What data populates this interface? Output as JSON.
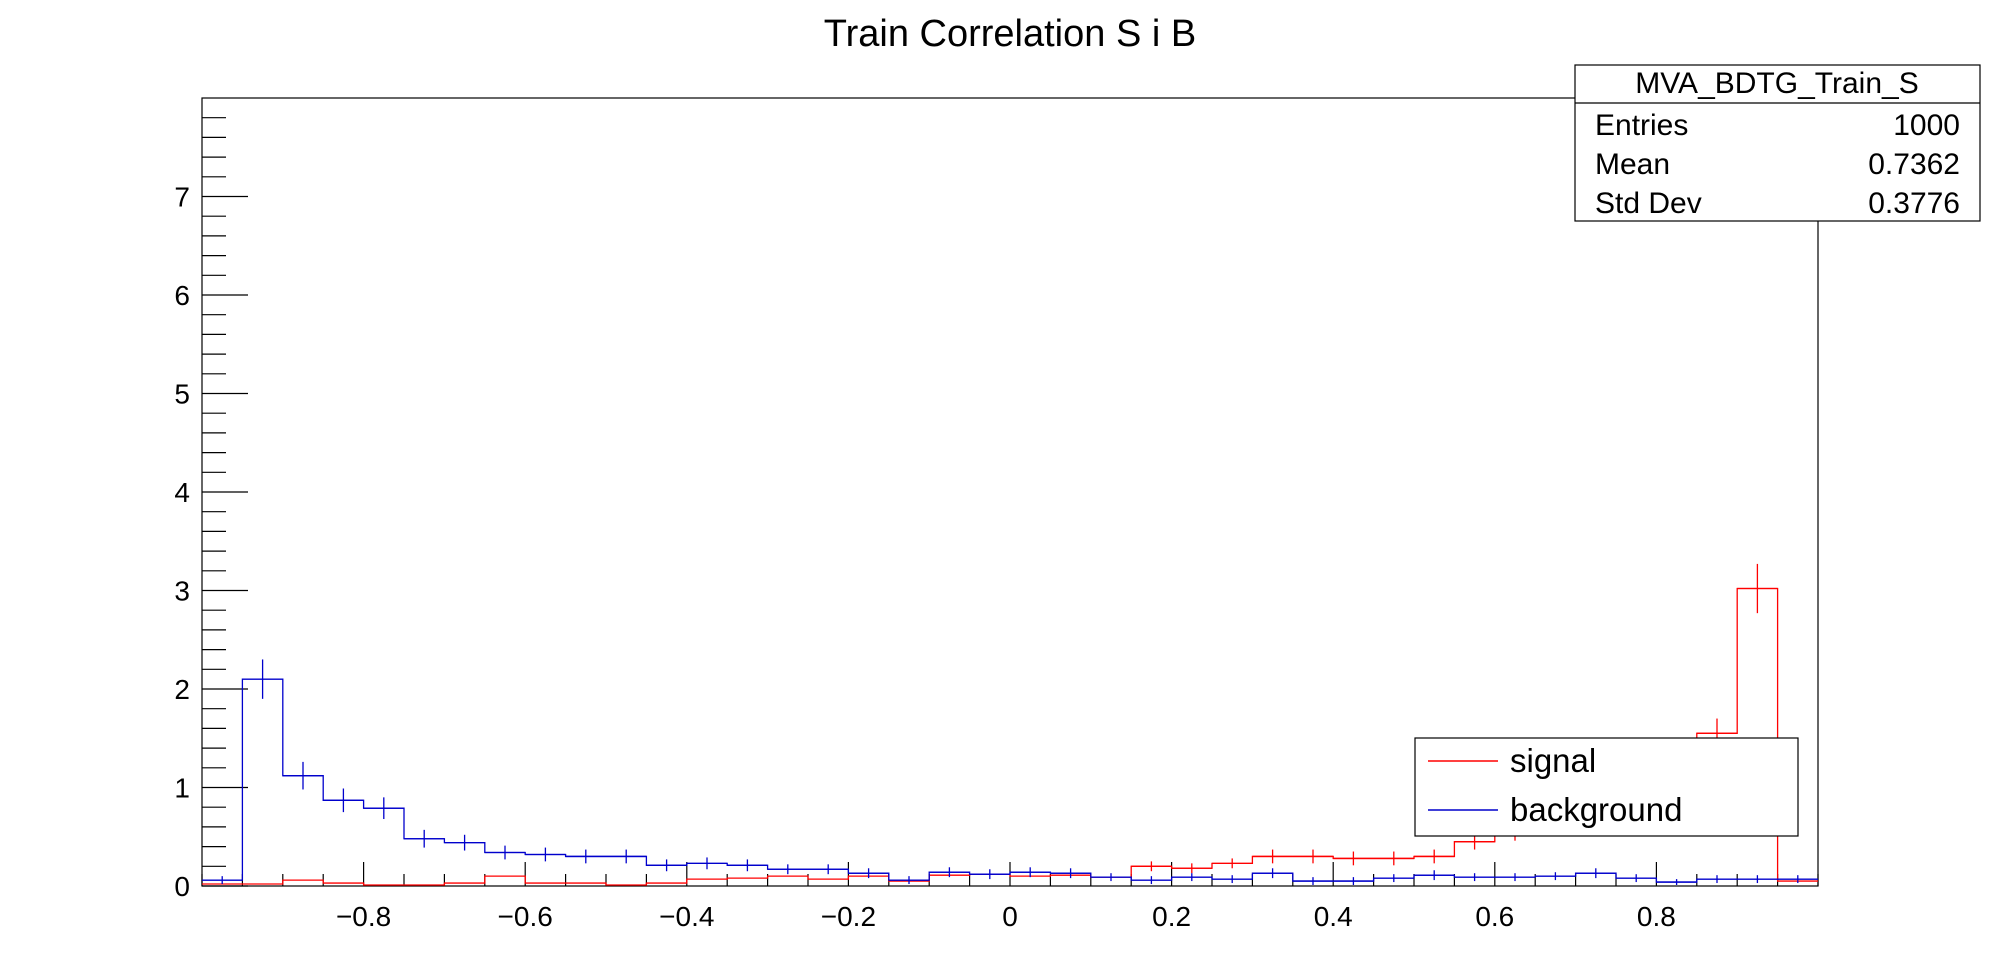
{
  "chart_data": {
    "type": "histogram",
    "title": "Train Correlation S i B",
    "xlabel": "",
    "ylabel": "",
    "xlim": [
      -1,
      1
    ],
    "ylim": [
      0,
      8
    ],
    "x_ticks": [
      -0.8,
      -0.6,
      -0.4,
      -0.2,
      0,
      0.2,
      0.4,
      0.6,
      0.8
    ],
    "x_tick_labels": [
      "−0.8",
      "−0.6",
      "−0.4",
      "−0.2",
      "0",
      "0.2",
      "0.4",
      "0.6",
      "0.8"
    ],
    "y_ticks": [
      0,
      1,
      2,
      3,
      4,
      5,
      6,
      7
    ],
    "y_tick_labels": [
      "0",
      "1",
      "2",
      "3",
      "4",
      "5",
      "6",
      "7"
    ],
    "bin_width": 0.05,
    "bin_centers": [
      -0.975,
      -0.925,
      -0.875,
      -0.825,
      -0.775,
      -0.725,
      -0.675,
      -0.625,
      -0.575,
      -0.525,
      -0.475,
      -0.425,
      -0.375,
      -0.325,
      -0.275,
      -0.225,
      -0.175,
      -0.125,
      -0.075,
      -0.025,
      0.025,
      0.075,
      0.125,
      0.175,
      0.225,
      0.275,
      0.325,
      0.375,
      0.425,
      0.475,
      0.525,
      0.575,
      0.625,
      0.675,
      0.725,
      0.775,
      0.825,
      0.875,
      0.925,
      0.975
    ],
    "series": [
      {
        "name": "signal",
        "color": "#ff0000",
        "line_values": [
          0.02,
          0.02,
          0.06,
          0.03,
          0.01,
          0.01,
          0.03,
          0.1,
          0.03,
          0.03,
          0.01,
          0.03,
          0.07,
          0.08,
          0.1,
          0.07,
          0.1,
          0.05,
          0.11,
          0.12,
          0.1,
          0.11,
          0.09,
          0.2,
          0.18,
          0.23,
          0.3,
          0.3,
          0.28,
          0.28,
          0.3,
          0.45,
          0.55,
          0.85,
          1.05,
          1.3,
          1.5,
          1.55,
          3.02,
          0.05
        ],
        "markers": [
          {
            "x": 0.175,
            "y": 0.2,
            "err": 0.05
          },
          {
            "x": 0.225,
            "y": 0.18,
            "err": 0.05
          },
          {
            "x": 0.275,
            "y": 0.23,
            "err": 0.05
          },
          {
            "x": 0.325,
            "y": 0.3,
            "err": 0.07
          },
          {
            "x": 0.375,
            "y": 0.3,
            "err": 0.07
          },
          {
            "x": 0.425,
            "y": 0.28,
            "err": 0.07
          },
          {
            "x": 0.475,
            "y": 0.28,
            "err": 0.07
          },
          {
            "x": 0.525,
            "y": 0.3,
            "err": 0.07
          },
          {
            "x": 0.575,
            "y": 0.45,
            "err": 0.08
          },
          {
            "x": 0.625,
            "y": 0.55,
            "err": 0.09
          },
          {
            "x": 0.875,
            "y": 1.55,
            "err": 0.15
          },
          {
            "x": 0.925,
            "y": 3.02,
            "err": 0.25
          }
        ]
      },
      {
        "name": "background",
        "color": "#0000cc",
        "line_values": [
          0.06,
          2.1,
          1.12,
          0.87,
          0.79,
          0.48,
          0.44,
          0.34,
          0.32,
          0.3,
          0.3,
          0.21,
          0.23,
          0.21,
          0.17,
          0.17,
          0.13,
          0.06,
          0.14,
          0.12,
          0.14,
          0.13,
          0.09,
          0.06,
          0.09,
          0.07,
          0.13,
          0.05,
          0.05,
          0.08,
          0.11,
          0.09,
          0.09,
          0.1,
          0.13,
          0.08,
          0.04,
          0.07,
          0.07,
          0.07
        ],
        "markers": [
          {
            "x": -0.975,
            "y": 0.06,
            "err": 0.04
          },
          {
            "x": -0.925,
            "y": 2.1,
            "err": 0.2
          },
          {
            "x": -0.875,
            "y": 1.12,
            "err": 0.14
          },
          {
            "x": -0.825,
            "y": 0.87,
            "err": 0.12
          },
          {
            "x": -0.775,
            "y": 0.79,
            "err": 0.11
          },
          {
            "x": -0.725,
            "y": 0.48,
            "err": 0.09
          },
          {
            "x": -0.675,
            "y": 0.44,
            "err": 0.08
          },
          {
            "x": -0.625,
            "y": 0.34,
            "err": 0.07
          },
          {
            "x": -0.575,
            "y": 0.32,
            "err": 0.07
          },
          {
            "x": -0.525,
            "y": 0.3,
            "err": 0.07
          },
          {
            "x": -0.475,
            "y": 0.3,
            "err": 0.07
          },
          {
            "x": -0.425,
            "y": 0.21,
            "err": 0.06
          },
          {
            "x": -0.375,
            "y": 0.23,
            "err": 0.06
          },
          {
            "x": -0.325,
            "y": 0.21,
            "err": 0.06
          },
          {
            "x": -0.275,
            "y": 0.17,
            "err": 0.05
          },
          {
            "x": -0.225,
            "y": 0.17,
            "err": 0.05
          },
          {
            "x": -0.175,
            "y": 0.13,
            "err": 0.05
          },
          {
            "x": -0.125,
            "y": 0.06,
            "err": 0.04
          },
          {
            "x": -0.075,
            "y": 0.14,
            "err": 0.05
          },
          {
            "x": -0.025,
            "y": 0.12,
            "err": 0.05
          },
          {
            "x": 0.025,
            "y": 0.14,
            "err": 0.05
          },
          {
            "x": 0.075,
            "y": 0.13,
            "err": 0.05
          },
          {
            "x": 0.125,
            "y": 0.09,
            "err": 0.04
          },
          {
            "x": 0.175,
            "y": 0.06,
            "err": 0.04
          },
          {
            "x": 0.225,
            "y": 0.09,
            "err": 0.04
          },
          {
            "x": 0.275,
            "y": 0.07,
            "err": 0.04
          },
          {
            "x": 0.325,
            "y": 0.13,
            "err": 0.05
          },
          {
            "x": 0.375,
            "y": 0.05,
            "err": 0.04
          },
          {
            "x": 0.425,
            "y": 0.05,
            "err": 0.04
          },
          {
            "x": 0.475,
            "y": 0.08,
            "err": 0.04
          },
          {
            "x": 0.525,
            "y": 0.11,
            "err": 0.05
          },
          {
            "x": 0.575,
            "y": 0.09,
            "err": 0.04
          },
          {
            "x": 0.625,
            "y": 0.09,
            "err": 0.04
          },
          {
            "x": 0.675,
            "y": 0.1,
            "err": 0.04
          },
          {
            "x": 0.725,
            "y": 0.13,
            "err": 0.05
          },
          {
            "x": 0.775,
            "y": 0.08,
            "err": 0.04
          },
          {
            "x": 0.825,
            "y": 0.04,
            "err": 0.03
          },
          {
            "x": 0.875,
            "y": 0.07,
            "err": 0.04
          },
          {
            "x": 0.925,
            "y": 0.07,
            "err": 0.04
          },
          {
            "x": 0.975,
            "y": 0.07,
            "err": 0.04
          }
        ]
      }
    ],
    "stats_box": {
      "title": "MVA_BDTG_Train_S",
      "rows": [
        {
          "label": "Entries",
          "value": "1000"
        },
        {
          "label": "Mean",
          "value": "0.7362"
        },
        {
          "label": "Std Dev",
          "value": "0.3776"
        }
      ]
    },
    "legend": {
      "placement": "bottom-right",
      "entries": [
        {
          "label": "signal",
          "color": "#ff0000"
        },
        {
          "label": "background",
          "color": "#0000cc"
        }
      ]
    }
  }
}
